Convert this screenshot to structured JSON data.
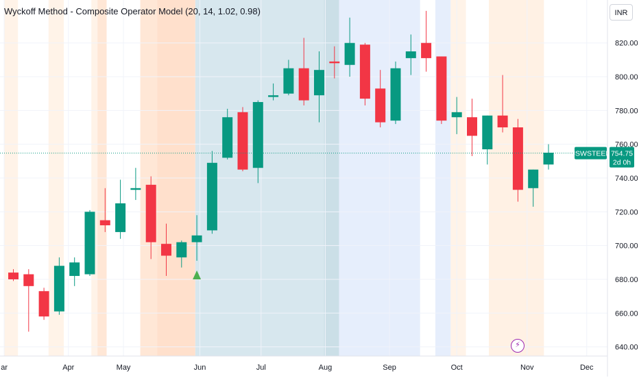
{
  "indicator": {
    "title": "Wyckoff Method - Composite Operator Model (20, 14, 1.02, 0.98)"
  },
  "currency": {
    "label": "INR"
  },
  "colors": {
    "up": "#089981",
    "down": "#f23645",
    "signal": "#4caf50",
    "grid": "#f0f3fa",
    "bolt": "#9c27b0"
  },
  "icons": {
    "bolt": "lightning-bolt-icon",
    "signal": "triangle-up-icon"
  },
  "chart_data": {
    "type": "candlestick",
    "symbol": "JSWSTEEL",
    "last_price": "754.75",
    "countdown": "2d 0h",
    "y_ticks": [
      640,
      660,
      680,
      700,
      720,
      740,
      760,
      780,
      800,
      820
    ],
    "y_tick_labels": [
      "640.00",
      "660.00",
      "680.00",
      "700.00",
      "720.00",
      "740.00",
      "760.00",
      "780.00",
      "800.00",
      "820.00"
    ],
    "ylim": [
      637,
      843
    ],
    "x_tick_labels": [
      "ar",
      "Apr",
      "May",
      "Jun",
      "Jul",
      "Aug",
      "Sep",
      "Oct",
      "Nov",
      "Dec"
    ],
    "x_tick_index": [
      -0.6,
      3.6,
      7.2,
      12.2,
      16.2,
      20.4,
      24.6,
      29.0,
      33.6,
      37.5
    ],
    "candles": [
      {
        "o": 684,
        "h": 686,
        "l": 679,
        "c": 680
      },
      {
        "o": 683,
        "h": 686,
        "l": 649,
        "c": 676
      },
      {
        "o": 673,
        "h": 675,
        "l": 656,
        "c": 658
      },
      {
        "o": 661,
        "h": 693,
        "l": 659,
        "c": 688
      },
      {
        "o": 682,
        "h": 693,
        "l": 676,
        "c": 690
      },
      {
        "o": 683,
        "h": 721,
        "l": 682,
        "c": 720
      },
      {
        "o": 715,
        "h": 734,
        "l": 708,
        "c": 712
      },
      {
        "o": 708,
        "h": 739,
        "l": 704,
        "c": 725
      },
      {
        "o": 733,
        "h": 746,
        "l": 727,
        "c": 734
      },
      {
        "o": 736,
        "h": 741,
        "l": 692,
        "c": 702
      },
      {
        "o": 701,
        "h": 713,
        "l": 682,
        "c": 694
      },
      {
        "o": 693,
        "h": 703,
        "l": 687,
        "c": 702
      },
      {
        "o": 702,
        "h": 718,
        "l": 691,
        "c": 706
      },
      {
        "o": 709,
        "h": 756,
        "l": 707,
        "c": 749
      },
      {
        "o": 752,
        "h": 781,
        "l": 751,
        "c": 776
      },
      {
        "o": 779,
        "h": 782,
        "l": 744,
        "c": 745
      },
      {
        "o": 746,
        "h": 786,
        "l": 737,
        "c": 785
      },
      {
        "o": 788,
        "h": 796,
        "l": 786,
        "c": 789
      },
      {
        "o": 790,
        "h": 810,
        "l": 789,
        "c": 805
      },
      {
        "o": 805,
        "h": 823,
        "l": 783,
        "c": 786
      },
      {
        "o": 789,
        "h": 815,
        "l": 773,
        "c": 804
      },
      {
        "o": 809,
        "h": 818,
        "l": 799,
        "c": 808
      },
      {
        "o": 807,
        "h": 835,
        "l": 800,
        "c": 820
      },
      {
        "o": 819,
        "h": 820,
        "l": 783,
        "c": 787
      },
      {
        "o": 793,
        "h": 804,
        "l": 770,
        "c": 773
      },
      {
        "o": 774,
        "h": 809,
        "l": 772,
        "c": 805
      },
      {
        "o": 811,
        "h": 825,
        "l": 801,
        "c": 815
      },
      {
        "o": 820,
        "h": 839,
        "l": 803,
        "c": 811
      },
      {
        "o": 812,
        "h": 812,
        "l": 772,
        "c": 774
      },
      {
        "o": 776,
        "h": 788,
        "l": 766,
        "c": 779
      },
      {
        "o": 776,
        "h": 787,
        "l": 753,
        "c": 765
      },
      {
        "o": 757,
        "h": 777,
        "l": 748,
        "c": 777
      },
      {
        "o": 777,
        "h": 801,
        "l": 767,
        "c": 770
      },
      {
        "o": 770,
        "h": 775,
        "l": 726,
        "c": 733
      },
      {
        "o": 734,
        "h": 745,
        "l": 723,
        "c": 745
      },
      {
        "o": 748,
        "h": 760,
        "l": 745,
        "c": 755
      }
    ],
    "signal_markers": [
      {
        "index": 12,
        "price": 682,
        "shape": "triangle-up"
      }
    ],
    "background_bands": [
      {
        "from": -0.6,
        "to": 0.3,
        "color": "#fff3e8"
      },
      {
        "from": 2.3,
        "to": 3.3,
        "color": "#fff3e8"
      },
      {
        "from": 5.1,
        "to": 5.5,
        "color": "#fff3e8"
      },
      {
        "from": 5.5,
        "to": 6.1,
        "color": "#ffe7d6"
      },
      {
        "from": 8.3,
        "to": 9.4,
        "color": "#ffe7d6"
      },
      {
        "from": 9.4,
        "to": 11.9,
        "color": "#ffe0cc"
      },
      {
        "from": 11.9,
        "to": 20.3,
        "color": "#d7e7ee"
      },
      {
        "from": 20.3,
        "to": 21.3,
        "color": "#cbdfe7"
      },
      {
        "from": 21.3,
        "to": 26.6,
        "color": "#e6eefc"
      },
      {
        "from": 27.6,
        "to": 28.6,
        "color": "#e6eefc"
      },
      {
        "from": 28.6,
        "to": 29.6,
        "color": "#fff3e8"
      },
      {
        "from": 31.1,
        "to": 34.7,
        "color": "#fff1e4"
      }
    ]
  }
}
